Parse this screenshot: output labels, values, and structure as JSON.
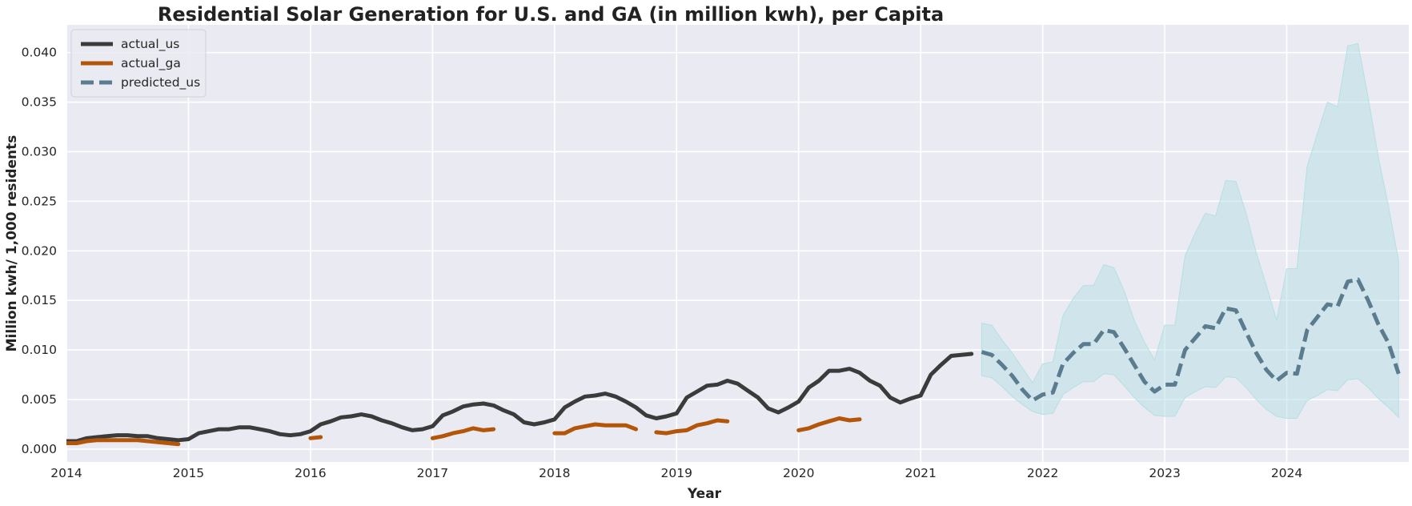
{
  "chart_data": {
    "type": "line",
    "title": "Residential Solar Generation for U.S. and GA (in million kwh), per Capita",
    "xlabel": "Year",
    "ylabel": "Million kwh/ 1,000 residents",
    "xlim": [
      "2014-01",
      "2024-12"
    ],
    "ylim": [
      -0.0013,
      0.0428
    ],
    "x_ticks": [
      "2014",
      "2015",
      "2016",
      "2017",
      "2018",
      "2019",
      "2020",
      "2021",
      "2022",
      "2023",
      "2024"
    ],
    "y_ticks": [
      "0.000",
      "0.005",
      "0.010",
      "0.015",
      "0.020",
      "0.025",
      "0.030",
      "0.035",
      "0.040"
    ],
    "grid": true,
    "legend_position": "top-left",
    "colors": {
      "plot_background": "#eaeaf2",
      "grid": "#ffffff",
      "actual_us": "#3b3b3b",
      "actual_ga": "#b3560a",
      "predicted_us": "#5b7b8f",
      "confidence_band": "#b4e0e3"
    },
    "series": [
      {
        "name": "actual_us",
        "style": "solid",
        "x": [
          "2014-01",
          "2014-02",
          "2014-03",
          "2014-04",
          "2014-05",
          "2014-06",
          "2014-07",
          "2014-08",
          "2014-09",
          "2014-10",
          "2014-11",
          "2014-12",
          "2015-01",
          "2015-02",
          "2015-03",
          "2015-04",
          "2015-05",
          "2015-06",
          "2015-07",
          "2015-08",
          "2015-09",
          "2015-10",
          "2015-11",
          "2015-12",
          "2016-01",
          "2016-02",
          "2016-03",
          "2016-04",
          "2016-05",
          "2016-06",
          "2016-07",
          "2016-08",
          "2016-09",
          "2016-10",
          "2016-11",
          "2016-12",
          "2017-01",
          "2017-02",
          "2017-03",
          "2017-04",
          "2017-05",
          "2017-06",
          "2017-07",
          "2017-08",
          "2017-09",
          "2017-10",
          "2017-11",
          "2017-12",
          "2018-01",
          "2018-02",
          "2018-03",
          "2018-04",
          "2018-05",
          "2018-06",
          "2018-07",
          "2018-08",
          "2018-09",
          "2018-10",
          "2018-11",
          "2018-12",
          "2019-01",
          "2019-02",
          "2019-03",
          "2019-04",
          "2019-05",
          "2019-06",
          "2019-07",
          "2019-08",
          "2019-09",
          "2019-10",
          "2019-11",
          "2019-12",
          "2020-01",
          "2020-02",
          "2020-03",
          "2020-04",
          "2020-05",
          "2020-06",
          "2020-07",
          "2020-08",
          "2020-09",
          "2020-10",
          "2020-11",
          "2020-12",
          "2021-01",
          "2021-02",
          "2021-03",
          "2021-04",
          "2021-05",
          "2021-06"
        ],
        "values": [
          0.0008,
          0.0008,
          0.0011,
          0.0012,
          0.0013,
          0.0014,
          0.0014,
          0.0013,
          0.0013,
          0.0011,
          0.001,
          0.0009,
          0.001,
          0.0016,
          0.0018,
          0.002,
          0.002,
          0.0022,
          0.0022,
          0.002,
          0.0018,
          0.0015,
          0.0014,
          0.0015,
          0.0018,
          0.0025,
          0.0028,
          0.0032,
          0.0033,
          0.0035,
          0.0033,
          0.0029,
          0.0026,
          0.0022,
          0.0019,
          0.002,
          0.0023,
          0.0034,
          0.0038,
          0.0043,
          0.0045,
          0.0046,
          0.0044,
          0.0039,
          0.0035,
          0.0027,
          0.0025,
          0.0027,
          0.003,
          0.0042,
          0.0048,
          0.0053,
          0.0054,
          0.0056,
          0.0053,
          0.0048,
          0.0042,
          0.0034,
          0.0031,
          0.0033,
          0.0036,
          0.0052,
          0.0058,
          0.0064,
          0.0065,
          0.0069,
          0.0066,
          0.0059,
          0.0052,
          0.0041,
          0.0037,
          0.0042,
          0.0048,
          0.0062,
          0.0069,
          0.0079,
          0.0079,
          0.0081,
          0.0077,
          0.0069,
          0.0064,
          0.0052,
          0.0047,
          0.0051,
          0.0054,
          0.0075,
          0.0085,
          0.0094,
          0.0095,
          0.0096
        ]
      },
      {
        "name": "actual_ga",
        "style": "solid",
        "segments": [
          {
            "x": [
              "2014-01",
              "2014-02",
              "2014-03",
              "2014-04",
              "2014-05",
              "2014-06",
              "2014-07",
              "2014-08",
              "2014-09",
              "2014-10",
              "2014-11",
              "2014-12"
            ],
            "values": [
              0.0006,
              0.0006,
              0.0008,
              0.0009,
              0.0009,
              0.0009,
              0.0009,
              0.0009,
              0.0008,
              0.0007,
              0.0006,
              0.0005
            ]
          },
          {
            "x": [
              "2016-01",
              "2016-02"
            ],
            "values": [
              0.0011,
              0.0012
            ]
          },
          {
            "x": [
              "2017-01",
              "2017-02",
              "2017-03",
              "2017-04",
              "2017-05",
              "2017-06",
              "2017-07"
            ],
            "values": [
              0.0011,
              0.0013,
              0.0016,
              0.0018,
              0.0021,
              0.0019,
              0.002
            ]
          },
          {
            "x": [
              "2018-01",
              "2018-02",
              "2018-03",
              "2018-04",
              "2018-05",
              "2018-06",
              "2018-07",
              "2018-08",
              "2018-09"
            ],
            "values": [
              0.0016,
              0.0016,
              0.0021,
              0.0023,
              0.0025,
              0.0024,
              0.0024,
              0.0024,
              0.002
            ]
          },
          {
            "x": [
              "2018-11",
              "2018-12",
              "2019-01",
              "2019-02",
              "2019-03",
              "2019-04",
              "2019-05",
              "2019-06"
            ],
            "values": [
              0.0017,
              0.0016,
              0.0018,
              0.0019,
              0.0024,
              0.0026,
              0.0029,
              0.0028
            ]
          },
          {
            "x": [
              "2020-01",
              "2020-02",
              "2020-03",
              "2020-04",
              "2020-05",
              "2020-06",
              "2020-07"
            ],
            "values": [
              0.0019,
              0.0021,
              0.0025,
              0.0028,
              0.0031,
              0.0029,
              0.003
            ]
          }
        ]
      },
      {
        "name": "predicted_us",
        "style": "dashed",
        "x": [
          "2021-07",
          "2021-08",
          "2021-09",
          "2021-10",
          "2021-11",
          "2021-12",
          "2022-01",
          "2022-02",
          "2022-03",
          "2022-04",
          "2022-05",
          "2022-06",
          "2022-07",
          "2022-08",
          "2022-09",
          "2022-10",
          "2022-11",
          "2022-12",
          "2023-01",
          "2023-02",
          "2023-03",
          "2023-04",
          "2023-05",
          "2023-06",
          "2023-07",
          "2023-08",
          "2023-09",
          "2023-10",
          "2023-11",
          "2023-12",
          "2024-01",
          "2024-02",
          "2024-03",
          "2024-04",
          "2024-05",
          "2024-06",
          "2024-07",
          "2024-08",
          "2024-09",
          "2024-10",
          "2024-11",
          "2024-12"
        ],
        "values": [
          0.0098,
          0.0095,
          0.0085,
          0.0074,
          0.006,
          0.0049,
          0.0055,
          0.0057,
          0.0086,
          0.0097,
          0.0106,
          0.0106,
          0.012,
          0.0118,
          0.0102,
          0.0085,
          0.0068,
          0.0058,
          0.0065,
          0.0065,
          0.01,
          0.0112,
          0.0124,
          0.0122,
          0.0142,
          0.014,
          0.0118,
          0.0097,
          0.008,
          0.0069,
          0.0077,
          0.0076,
          0.012,
          0.0133,
          0.0146,
          0.0144,
          0.0169,
          0.0171,
          0.015,
          0.0126,
          0.0107,
          0.0076
        ],
        "band_upper": [
          0.0127,
          0.0125,
          0.011,
          0.0097,
          0.0082,
          0.0067,
          0.0086,
          0.0088,
          0.0135,
          0.0152,
          0.0165,
          0.0165,
          0.0186,
          0.0183,
          0.016,
          0.013,
          0.0108,
          0.009,
          0.0125,
          0.0125,
          0.0195,
          0.0218,
          0.0238,
          0.0235,
          0.0271,
          0.027,
          0.0238,
          0.0198,
          0.0165,
          0.013,
          0.0182,
          0.0182,
          0.0285,
          0.0318,
          0.035,
          0.0345,
          0.0407,
          0.0409,
          0.0355,
          0.0295,
          0.0245,
          0.019
        ],
        "band_lower": [
          0.0074,
          0.0072,
          0.0063,
          0.0053,
          0.0045,
          0.0038,
          0.0035,
          0.0036,
          0.0055,
          0.0062,
          0.0068,
          0.0068,
          0.0076,
          0.0075,
          0.0064,
          0.0052,
          0.0042,
          0.0034,
          0.0033,
          0.0033,
          0.0052,
          0.0058,
          0.0063,
          0.0062,
          0.0073,
          0.0072,
          0.0062,
          0.005,
          0.004,
          0.0033,
          0.0031,
          0.0031,
          0.0049,
          0.0054,
          0.006,
          0.0059,
          0.007,
          0.0071,
          0.0062,
          0.0051,
          0.0042,
          0.0032
        ]
      }
    ]
  }
}
